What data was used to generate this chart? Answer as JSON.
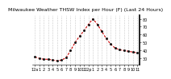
{
  "title": "Milwaukee Weather THSW Index per Hour (F) (Last 24 Hours)",
  "x_values": [
    0,
    1,
    2,
    3,
    4,
    5,
    6,
    7,
    8,
    9,
    10,
    11,
    12,
    13,
    14,
    15,
    16,
    17,
    18,
    19,
    20,
    21,
    22,
    23
  ],
  "y_values": [
    32,
    30,
    29,
    29,
    28,
    27,
    28,
    31,
    40,
    50,
    58,
    65,
    73,
    80,
    73,
    64,
    55,
    48,
    43,
    41,
    40,
    39,
    38,
    37
  ],
  "line_color": "#cc0000",
  "marker_color": "#111111",
  "background_color": "#ffffff",
  "grid_color": "#999999",
  "ylim": [
    22,
    85
  ],
  "yticks": [
    30,
    40,
    50,
    60,
    70,
    80
  ],
  "xtick_labels": [
    "12a",
    "1",
    "2",
    "3",
    "4",
    "5",
    "6",
    "7",
    "8",
    "9",
    "10",
    "11",
    "12p",
    "1",
    "2",
    "3",
    "4",
    "5",
    "6",
    "7",
    "8",
    "9",
    "10",
    "11"
  ],
  "title_fontsize": 4.5,
  "tick_fontsize": 3.5
}
